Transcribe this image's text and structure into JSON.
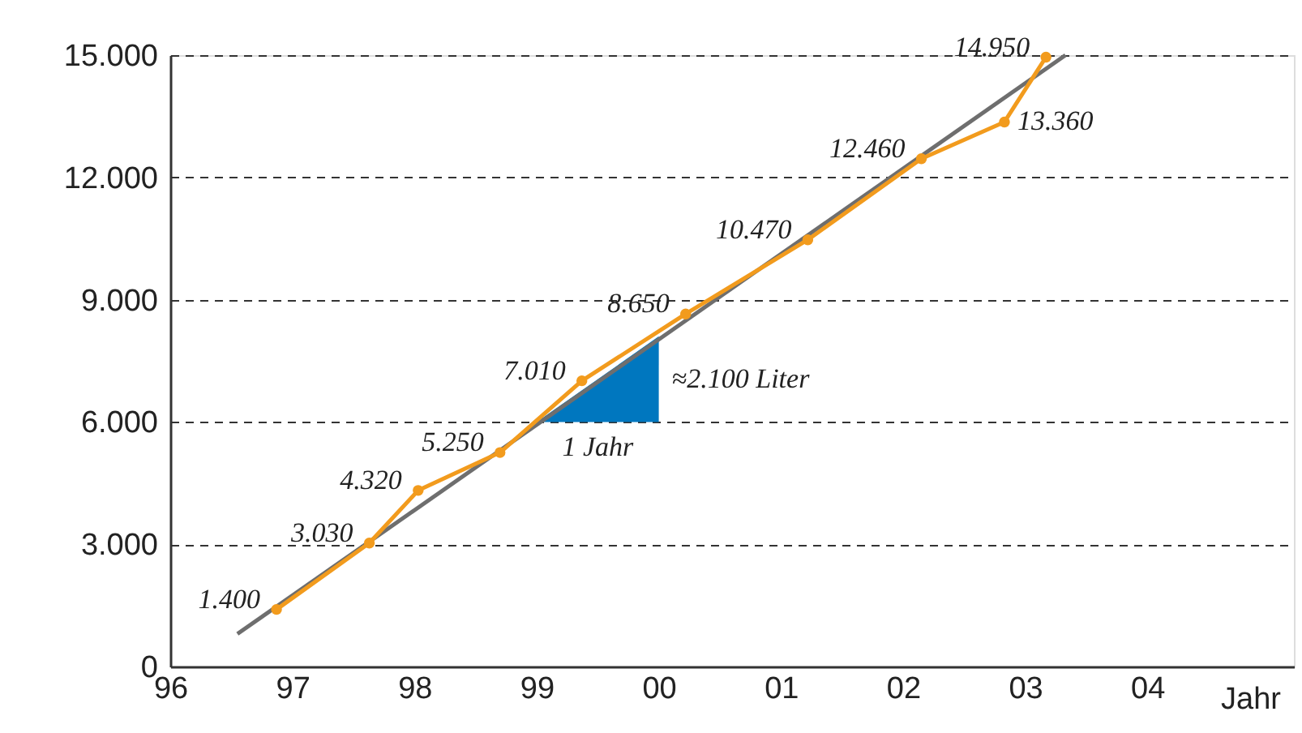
{
  "chart_data": {
    "type": "line",
    "xlabel": "Jahr",
    "xlim": [
      1996,
      2005.2
    ],
    "xticks": [
      {
        "value": 1996,
        "label": "96"
      },
      {
        "value": 1997,
        "label": "97"
      },
      {
        "value": 1998,
        "label": "98"
      },
      {
        "value": 1999,
        "label": "99"
      },
      {
        "value": 2000,
        "label": "00"
      },
      {
        "value": 2001,
        "label": "01"
      },
      {
        "value": 2002,
        "label": "02"
      },
      {
        "value": 2003,
        "label": "03"
      },
      {
        "value": 2004,
        "label": "04"
      }
    ],
    "ylim": [
      0,
      15000
    ],
    "yticks": [
      0,
      {
        "value": 3000,
        "label": "3.000"
      },
      {
        "value": 6000,
        "label": "6.000"
      },
      {
        "value": 9000,
        "label": "9.000"
      },
      {
        "value": 12000,
        "label": "12.000"
      },
      {
        "value": 15000,
        "label": "15.000"
      }
    ],
    "grid": "y",
    "marker": "circle",
    "line_style": "solid",
    "series": [
      {
        "type": "area",
        "marker": "none",
        "color": "#0077bf",
        "x": [
          1999,
          2000
        ],
        "values": [
          6000,
          8100
        ]
      },
      {
        "type": "line",
        "marker": "none",
        "color": "#6e6e6e",
        "x": [
          1996.55,
          2003.33
        ],
        "values": [
          800,
          15000
        ]
      },
      {
        "color": "#f29b1d",
        "x": [
          1996.87,
          1997.63,
          1998.03,
          1998.7,
          1999.37,
          2000.22,
          2001.22,
          2002.15,
          2002.83,
          2003.17
        ],
        "values": [
          1400,
          3030,
          4320,
          5250,
          7010,
          8650,
          10470,
          12460,
          13360,
          14950
        ],
        "value_labels": [
          "1.400",
          "3.030",
          "4.320",
          "5.250",
          "7.010",
          "8.650",
          "10.470",
          "12.460",
          "13.360",
          "14.950"
        ]
      }
    ],
    "annotations": [
      "≈2.100 Liter",
      "1 Jahr"
    ]
  }
}
